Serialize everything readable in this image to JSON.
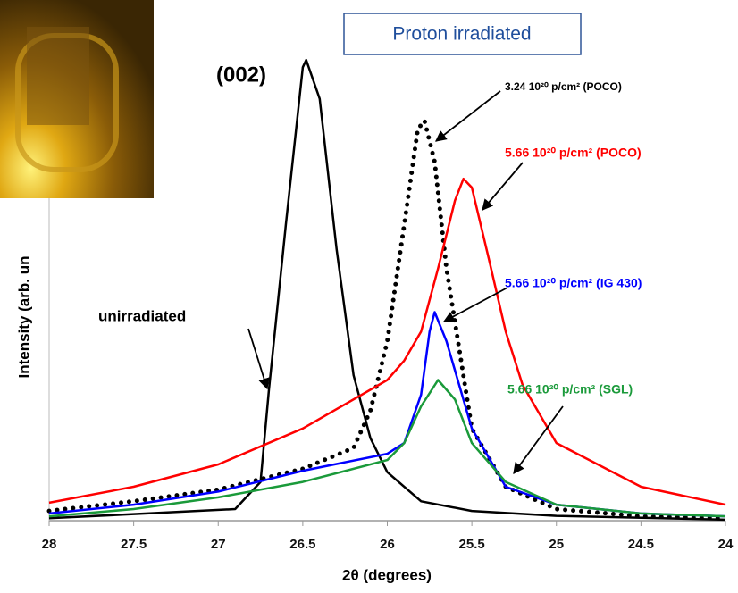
{
  "chart_data": {
    "type": "line",
    "title": "Proton irradiated",
    "annotation": "(002)",
    "xlabel": "2θ (degrees)",
    "ylabel": "Intensity (arb. un",
    "xlim": [
      28,
      24
    ],
    "xticks": [
      28,
      27.5,
      27,
      26.5,
      26,
      25.5,
      25,
      24.5,
      24
    ],
    "ylim": [
      0,
      100
    ],
    "series": [
      {
        "name": "unirradiated",
        "color": "#000000",
        "style": "solid",
        "x": [
          28,
          26.9,
          26.75,
          26.7,
          26.6,
          26.5,
          26.48,
          26.4,
          26.3,
          26.2,
          26.1,
          26.0,
          25.8,
          25.5,
          25,
          24
        ],
        "values": [
          0.5,
          2.4,
          8,
          27,
          61,
          93.5,
          95,
          87,
          56,
          30,
          17,
          10,
          4,
          2,
          1,
          0.2
        ]
      },
      {
        "name": "3.24  10²⁰ p/cm² (POCO)",
        "color": "#000000",
        "style": "dotted",
        "x": [
          28,
          27.5,
          27,
          26.5,
          26.2,
          26.1,
          26,
          25.9,
          25.82,
          25.78,
          25.72,
          25.65,
          25.5,
          25.3,
          25,
          24.5,
          24
        ],
        "values": [
          2,
          4,
          6.4,
          10.7,
          15,
          22.7,
          37,
          61,
          80.7,
          82.5,
          74,
          52,
          19,
          7,
          2.4,
          0.9,
          0.5
        ]
      },
      {
        "name": "5.66  10²⁰ p/cm² (POCO)",
        "color": "#ff0000",
        "style": "solid",
        "x": [
          28,
          27.5,
          27,
          26.5,
          26,
          25.9,
          25.8,
          25.7,
          25.6,
          25.55,
          25.5,
          25.4,
          25.3,
          25.2,
          25,
          24.5,
          24
        ],
        "values": [
          3.7,
          7,
          11.6,
          19,
          29,
          33,
          39,
          52,
          66,
          70.5,
          68.7,
          54,
          39,
          28,
          16,
          7,
          3.3
        ]
      },
      {
        "name": "5.66  10²⁰ p/cm² (IG 430)",
        "color": "#0000ff",
        "style": "solid",
        "x": [
          28,
          27.5,
          27,
          26.5,
          26,
          25.9,
          25.8,
          25.75,
          25.72,
          25.65,
          25.5,
          25.3,
          25,
          24.5,
          24
        ],
        "values": [
          1.5,
          3.3,
          6,
          10.3,
          13.8,
          16,
          26,
          39,
          43,
          37,
          19,
          7,
          3.3,
          1.5,
          0.9
        ]
      },
      {
        "name": "5.66  10²⁰ p/cm² (SGL)",
        "color": "#1a9a3a",
        "style": "solid",
        "x": [
          28,
          27.5,
          27,
          26.5,
          26,
          25.9,
          25.8,
          25.7,
          25.6,
          25.5,
          25.3,
          25,
          24.5,
          24
        ],
        "values": [
          0.9,
          2.4,
          4.8,
          8,
          12.5,
          16,
          23.6,
          29,
          25,
          16,
          8,
          3.3,
          1.5,
          0.9
        ]
      }
    ]
  }
}
